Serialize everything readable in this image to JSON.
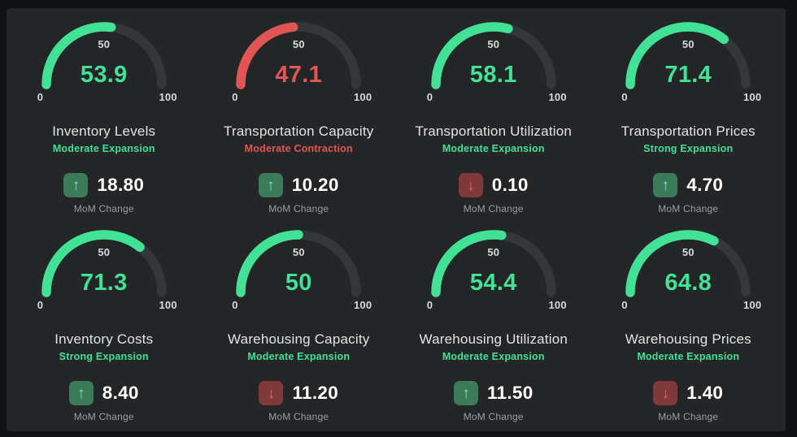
{
  "mom_label": "MoM Change",
  "gauge_scale": {
    "min": "0",
    "mid": "50",
    "max": "100"
  },
  "colors": {
    "expansion": "#41e296",
    "contraction": "#e15654",
    "track": "#33373b",
    "badge_up_bg": "#3c7b59",
    "badge_up_fg": "#7fe7ae",
    "badge_down_bg": "#7f393b",
    "badge_down_fg": "#e4625f",
    "value_white": "#ffffff",
    "label_gray": "#9a9da1",
    "background": "#232527"
  },
  "panels": [
    {
      "title": "Inventory Levels",
      "status": "Moderate Expansion",
      "trend": "expansion",
      "value": 53.9,
      "value_label": "53.9",
      "change": "18.80",
      "change_dir": "up"
    },
    {
      "title": "Transportation Capacity",
      "status": "Moderate Contraction",
      "trend": "contraction",
      "value": 47.1,
      "value_label": "47.1",
      "change": "10.20",
      "change_dir": "up"
    },
    {
      "title": "Transportation Utilization",
      "status": "Moderate Expansion",
      "trend": "expansion",
      "value": 58.1,
      "value_label": "58.1",
      "change": "0.10",
      "change_dir": "down"
    },
    {
      "title": "Transportation Prices",
      "status": "Strong Expansion",
      "trend": "expansion",
      "value": 71.4,
      "value_label": "71.4",
      "change": "4.70",
      "change_dir": "up"
    },
    {
      "title": "Inventory Costs",
      "status": "Strong Expansion",
      "trend": "expansion",
      "value": 71.3,
      "value_label": "71.3",
      "change": "8.40",
      "change_dir": "up"
    },
    {
      "title": "Warehousing Capacity",
      "status": "Moderate Expansion",
      "trend": "expansion",
      "value": 50,
      "value_label": "50",
      "change": "11.20",
      "change_dir": "down"
    },
    {
      "title": "Warehousing Utilization",
      "status": "Moderate Expansion",
      "trend": "expansion",
      "value": 54.4,
      "value_label": "54.4",
      "change": "11.50",
      "change_dir": "up"
    },
    {
      "title": "Warehousing Prices",
      "status": "Moderate Expansion",
      "trend": "expansion",
      "value": 64.8,
      "value_label": "64.8",
      "change": "1.40",
      "change_dir": "down"
    }
  ],
  "chart_data": [
    {
      "type": "gauge",
      "title": "Inventory Levels",
      "value": 53.9,
      "min": 0,
      "max": 100,
      "mid_tick": 50,
      "status": "Moderate Expansion",
      "mom_change": 18.8,
      "mom_direction": "up"
    },
    {
      "type": "gauge",
      "title": "Transportation Capacity",
      "value": 47.1,
      "min": 0,
      "max": 100,
      "mid_tick": 50,
      "status": "Moderate Contraction",
      "mom_change": 10.2,
      "mom_direction": "up"
    },
    {
      "type": "gauge",
      "title": "Transportation Utilization",
      "value": 58.1,
      "min": 0,
      "max": 100,
      "mid_tick": 50,
      "status": "Moderate Expansion",
      "mom_change": 0.1,
      "mom_direction": "down"
    },
    {
      "type": "gauge",
      "title": "Transportation Prices",
      "value": 71.4,
      "min": 0,
      "max": 100,
      "mid_tick": 50,
      "status": "Strong Expansion",
      "mom_change": 4.7,
      "mom_direction": "up"
    },
    {
      "type": "gauge",
      "title": "Inventory Costs",
      "value": 71.3,
      "min": 0,
      "max": 100,
      "mid_tick": 50,
      "status": "Strong Expansion",
      "mom_change": 8.4,
      "mom_direction": "up"
    },
    {
      "type": "gauge",
      "title": "Warehousing Capacity",
      "value": 50,
      "min": 0,
      "max": 100,
      "mid_tick": 50,
      "status": "Moderate Expansion",
      "mom_change": 11.2,
      "mom_direction": "down"
    },
    {
      "type": "gauge",
      "title": "Warehousing Utilization",
      "value": 54.4,
      "min": 0,
      "max": 100,
      "mid_tick": 50,
      "status": "Moderate Expansion",
      "mom_change": 11.5,
      "mom_direction": "up"
    },
    {
      "type": "gauge",
      "title": "Warehousing Prices",
      "value": 64.8,
      "min": 0,
      "max": 100,
      "mid_tick": 50,
      "status": "Moderate Expansion",
      "mom_change": 1.4,
      "mom_direction": "down"
    }
  ]
}
